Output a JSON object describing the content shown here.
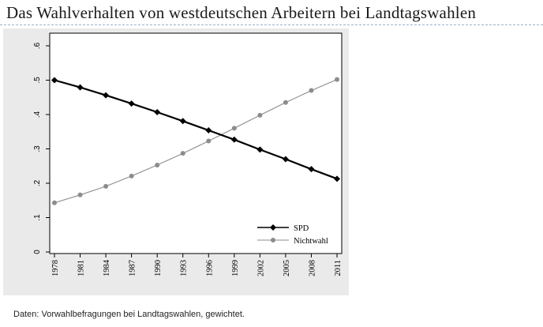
{
  "page": {
    "title": "Das Wahlverhalten von westdeutschen Arbeitern bei Landtagswahlen",
    "source_note": "Daten: Vorwahlbefragungen bei Landtagswahlen, gewichtet."
  },
  "chart_data": {
    "type": "line",
    "title": "",
    "xlabel": "",
    "ylabel": "",
    "x": [
      1978,
      1981,
      1984,
      1987,
      1990,
      1993,
      1996,
      1999,
      2002,
      2005,
      2008,
      2011
    ],
    "xlim": [
      1978,
      2011
    ],
    "ylim": [
      0,
      0.6
    ],
    "y_ticks": [
      0,
      0.1,
      0.2,
      0.3,
      0.4,
      0.5,
      0.6
    ],
    "y_tick_labels": [
      "0",
      ".1",
      ".2",
      ".3",
      ".4",
      ".5",
      ".6"
    ],
    "x_tick_labels": [
      "1978",
      "1981",
      "1984",
      "1987",
      "1990",
      "1993",
      "1996",
      "1999",
      "2002",
      "2005",
      "2008",
      "2011"
    ],
    "grid": false,
    "legend_position": "bottom-right",
    "series": [
      {
        "name": "SPD",
        "color": "#000000",
        "marker": "diamond",
        "values": [
          0.5,
          0.479,
          0.456,
          0.432,
          0.407,
          0.381,
          0.354,
          0.327,
          0.298,
          0.27,
          0.241,
          0.213
        ]
      },
      {
        "name": "Nichtwahl",
        "color": "#8c8c8c",
        "marker": "circle",
        "values": [
          0.143,
          0.166,
          0.191,
          0.221,
          0.253,
          0.287,
          0.323,
          0.36,
          0.398,
          0.435,
          0.47,
          0.502
        ]
      }
    ]
  }
}
